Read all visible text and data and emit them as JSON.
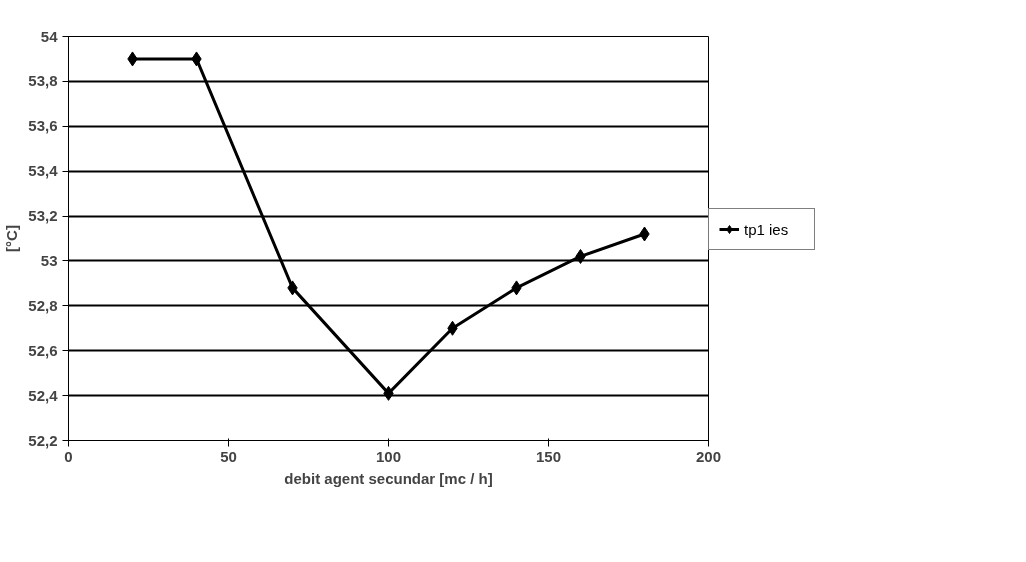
{
  "chart_data": {
    "type": "line",
    "xlabel": "debit agent secundar [mc / h]",
    "ylabel": "[°C]",
    "x": [
      20,
      40,
      70,
      100,
      120,
      140,
      160,
      180
    ],
    "series": [
      {
        "name": "tp1 ies",
        "color": "#000000",
        "values": [
          53.9,
          53.9,
          52.88,
          52.41,
          52.7,
          52.88,
          53.02,
          53.12
        ]
      }
    ],
    "xlim": [
      0,
      200
    ],
    "xticks": [
      0,
      50,
      100,
      150,
      200
    ],
    "ylim": [
      52.2,
      54
    ],
    "yticks": [
      {
        "value": 52.2,
        "label": "52,2"
      },
      {
        "value": 52.4,
        "label": "52,4"
      },
      {
        "value": 52.6,
        "label": "52,6"
      },
      {
        "value": 52.8,
        "label": "52,8"
      },
      {
        "value": 53,
        "label": "53"
      },
      {
        "value": 53.2,
        "label": "53,2"
      },
      {
        "value": 53.4,
        "label": "53,4"
      },
      {
        "value": 53.6,
        "label": "53,6"
      },
      {
        "value": 53.8,
        "label": "53,8"
      },
      {
        "value": 54,
        "label": "54"
      }
    ],
    "grid": "y",
    "legend": "right",
    "marker": "diamond",
    "line_style": "solid"
  }
}
